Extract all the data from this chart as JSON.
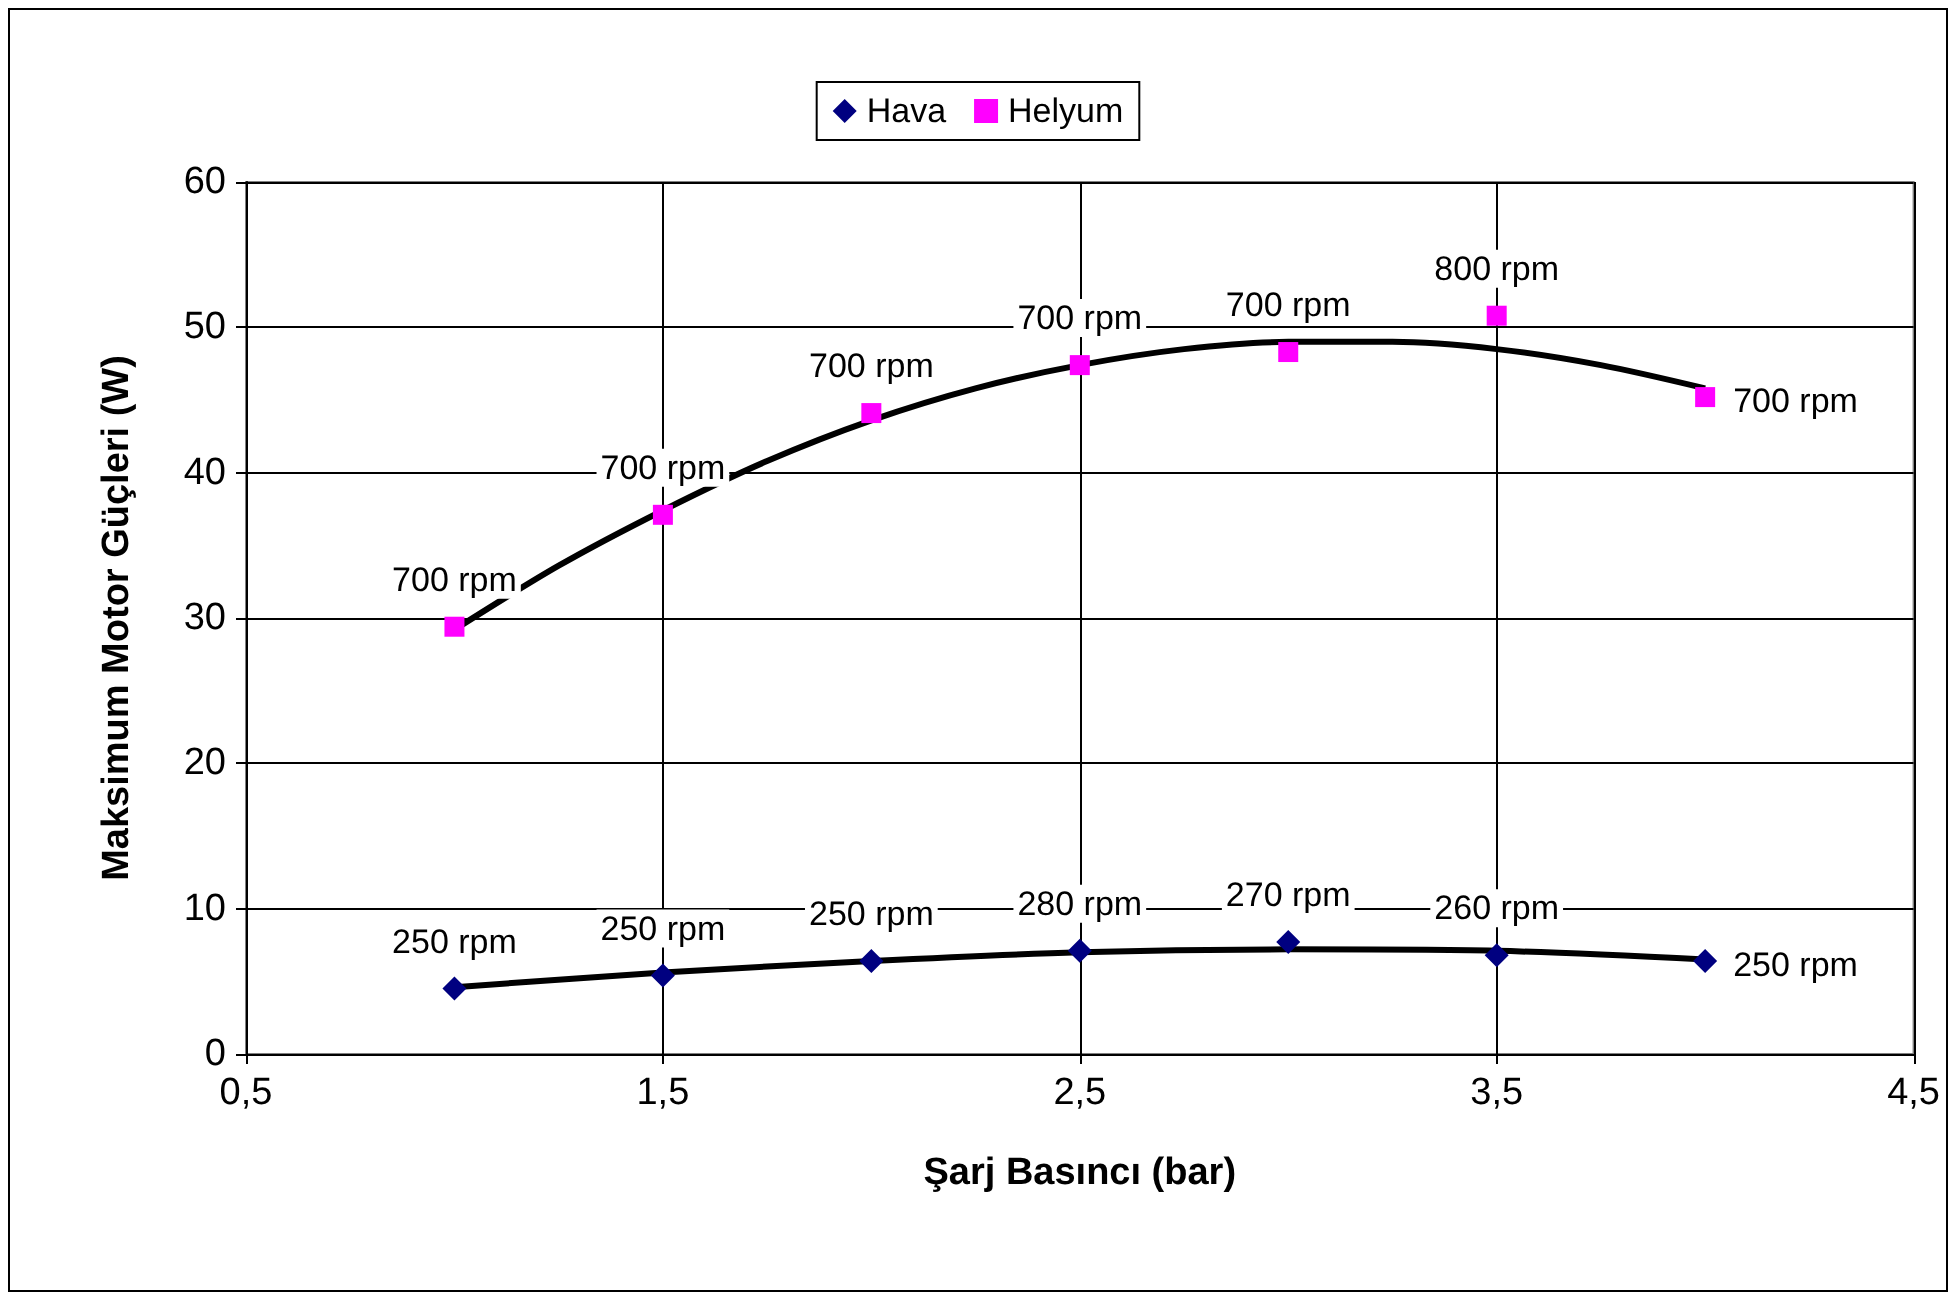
{
  "chart_data": {
    "type": "scatter",
    "xlabel": "Şarj Basıncı (bar)",
    "ylabel": "Maksimum Motor Güçleri (W)",
    "x": [
      1,
      1.5,
      2,
      2.5,
      3,
      3.5,
      4
    ],
    "series": [
      {
        "name": "Hava",
        "color": "#000080",
        "marker": "diamond",
        "values": [
          4.5,
          5.4,
          6.4,
          7.1,
          7.7,
          6.8,
          6.4
        ]
      },
      {
        "name": "Helyum",
        "color": "#ff00ff",
        "marker": "square",
        "values": [
          29.4,
          37.1,
          44.1,
          47.4,
          48.3,
          50.8,
          45.2
        ]
      },
      {
        "type": "line",
        "color": "#000000",
        "marker": "none",
        "x": [
          1,
          1.5,
          2,
          2.5,
          3,
          3.5,
          4
        ],
        "values": [
          4.6,
          5.6,
          6.4,
          7.0,
          7.2,
          7.1,
          6.5
        ]
      },
      {
        "type": "line",
        "color": "#000000",
        "marker": "none",
        "x": [
          1,
          1.25,
          1.5,
          1.75,
          2,
          2.25,
          2.5,
          2.75,
          3,
          3.25,
          3.5,
          3.75,
          4
        ],
        "values": [
          29.2,
          33.6,
          37.4,
          40.8,
          43.6,
          45.8,
          47.4,
          48.5,
          49,
          49,
          48.5,
          47.4,
          45.8
        ]
      }
    ],
    "annotations": [
      {
        "text": "250 rpm",
        "x": 1,
        "y": 4.5
      },
      {
        "text": "250 rpm",
        "x": 1.5,
        "y": 5.4
      },
      {
        "text": "250 rpm",
        "x": 2,
        "y": 6.4
      },
      {
        "text": "280 rpm",
        "x": 2.5,
        "y": 7.1
      },
      {
        "text": "270 rpm",
        "x": 3,
        "y": 7.7
      },
      {
        "text": "260 rpm",
        "x": 3.5,
        "y": 6.8
      },
      {
        "text": "250 rpm",
        "x": 4,
        "y": 6.4
      },
      {
        "text": "700 rpm",
        "x": 1,
        "y": 29.4
      },
      {
        "text": "700 rpm",
        "x": 1.5,
        "y": 37.1
      },
      {
        "text": "700 rpm",
        "x": 2,
        "y": 44.1
      },
      {
        "text": "700 rpm",
        "x": 2.5,
        "y": 47.4
      },
      {
        "text": "700 rpm",
        "x": 3,
        "y": 48.3
      },
      {
        "text": "800 rpm",
        "x": 3.5,
        "y": 50.8
      },
      {
        "text": "700 rpm",
        "x": 4,
        "y": 45.2
      }
    ],
    "xlim": [
      0.5,
      4.5
    ],
    "xticks": [
      {
        "value": 0.5,
        "label": "0,5"
      },
      {
        "value": 1.5,
        "label": "1,5"
      },
      {
        "value": 2.5,
        "label": "2,5"
      },
      {
        "value": 3.5,
        "label": "3,5"
      },
      {
        "value": 4.5,
        "label": "4,5"
      }
    ],
    "ylim": [
      0,
      60
    ],
    "yticks": [
      0,
      10,
      20,
      30,
      40,
      50,
      60
    ],
    "grid": true,
    "legend": "top",
    "line_style": "solid"
  }
}
